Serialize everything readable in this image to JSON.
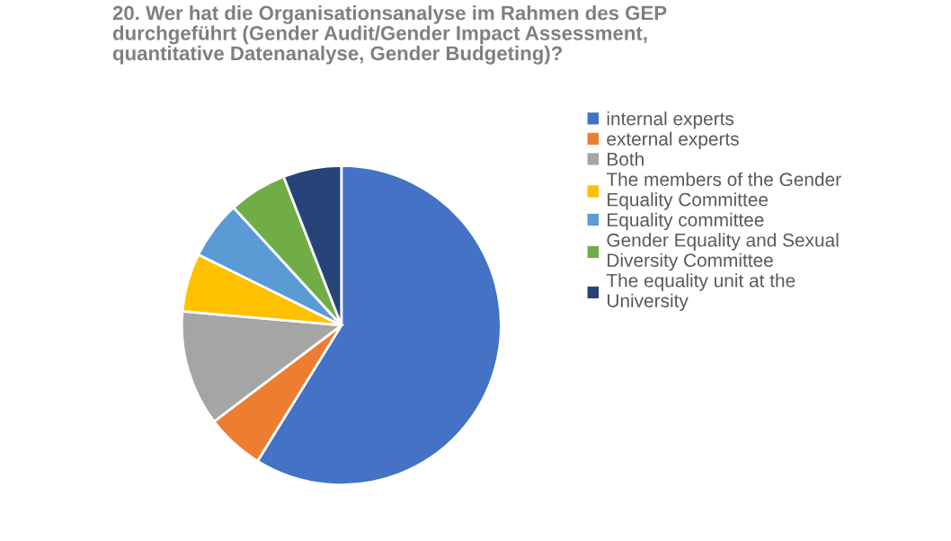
{
  "chart_data": {
    "type": "pie",
    "title": "20. Wer hat die Organisationsanalyse im Rahmen des GEP durchgeführt (Gender Audit/Gender Impact Assessment, quantitative Datenanalyse, Gender Budgeting)?",
    "categories": [
      "internal experts",
      "external experts",
      "Both",
      "The members of the Gender Equality Committee",
      "Equality committee",
      "Gender Equality and Sexual Diversity Committee",
      "The equality unit at the University"
    ],
    "values": [
      58.8,
      5.9,
      11.7,
      5.9,
      5.9,
      5.9,
      5.9
    ],
    "colors": [
      "#4472c4",
      "#ed7d31",
      "#a5a5a5",
      "#ffc000",
      "#5b9bd5",
      "#70ad47",
      "#264478"
    ],
    "legend": "right"
  }
}
